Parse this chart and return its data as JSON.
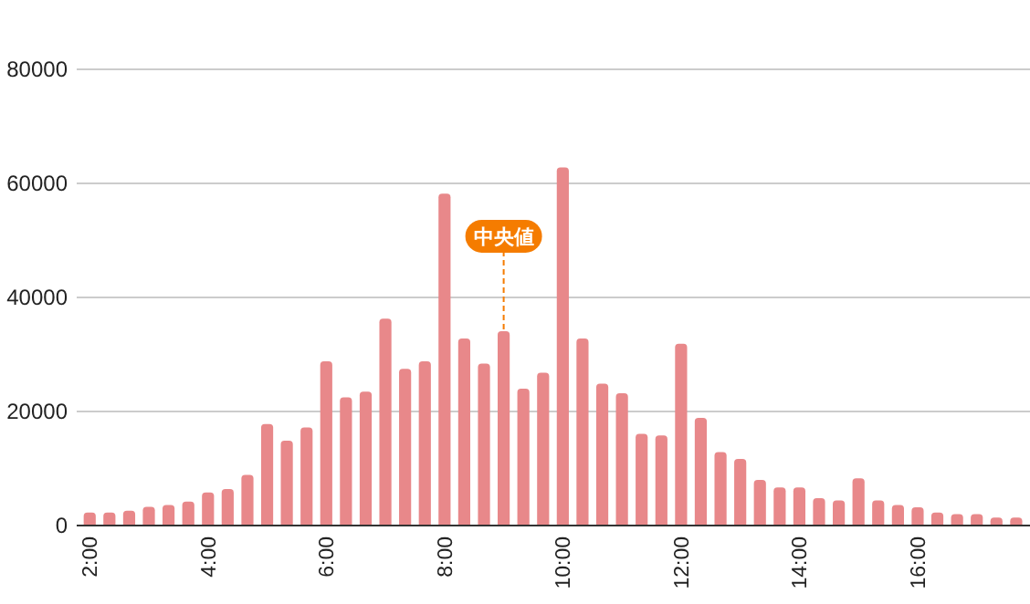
{
  "chart_data": {
    "type": "bar",
    "x": [
      2,
      2.333,
      2.667,
      3,
      3.333,
      3.667,
      4,
      4.333,
      4.667,
      5,
      5.333,
      5.667,
      6,
      6.333,
      6.667,
      7,
      7.333,
      7.667,
      8,
      8.333,
      8.667,
      9,
      9.333,
      9.667,
      10,
      10.333,
      10.667,
      11,
      11.333,
      11.667,
      12,
      12.333,
      12.667,
      13,
      13.333,
      13.667,
      14,
      14.333,
      14.667,
      15,
      15.333,
      15.667,
      16,
      16.333,
      16.667,
      17,
      17.333,
      17.667
    ],
    "series": [
      {
        "color": "#e8888a",
        "values": [
          2300,
          2300,
          2600,
          3300,
          3600,
          4200,
          5800,
          6400,
          8900,
          17800,
          14900,
          17200,
          28800,
          22500,
          23500,
          36300,
          27500,
          28800,
          58200,
          32800,
          28400,
          34100,
          24000,
          26800,
          62800,
          32800,
          24900,
          23200,
          16100,
          15800,
          31900,
          18900,
          12900,
          11700,
          8000,
          6700,
          6700,
          4800,
          4400,
          8300,
          4400,
          3600,
          3200,
          2300,
          2000,
          2000,
          1400,
          1400
        ]
      }
    ],
    "xlim": [
      1.78,
      17.9
    ],
    "xticks": [
      {
        "value": 2,
        "label": "2:00"
      },
      {
        "value": 4,
        "label": "4:00"
      },
      {
        "value": 6,
        "label": "6:00"
      },
      {
        "value": 8,
        "label": "8:00"
      },
      {
        "value": 10,
        "label": "10:00"
      },
      {
        "value": 12,
        "label": "12:00"
      },
      {
        "value": 14,
        "label": "14:00"
      },
      {
        "value": 16,
        "label": "16:00"
      }
    ],
    "ylim": [
      0,
      80000
    ],
    "yticks": [
      0,
      20000,
      40000,
      60000,
      80000
    ],
    "grid": "y",
    "annotations": [
      {
        "text": "中央値",
        "x": 9,
        "y": 34100
      }
    ]
  }
}
